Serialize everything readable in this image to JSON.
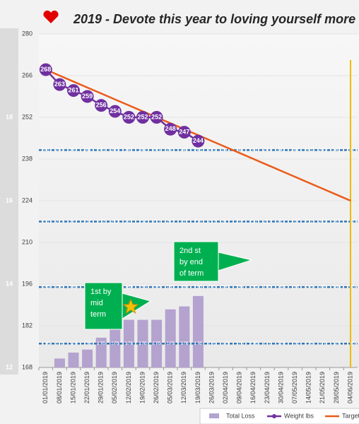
{
  "chart_data": {
    "type": "bar-line",
    "title": "2019 - Devote this year to loving yourself more",
    "categories": [
      "01/01/2019",
      "08/01/2019",
      "15/01/2019",
      "22/01/2019",
      "29/01/2019",
      "05/02/2019",
      "12/02/2019",
      "19/02/2019",
      "26/02/2019",
      "05/03/2019",
      "12/03/2019",
      "19/03/2019",
      "26/03/2019",
      "02/04/2019",
      "09/04/2019",
      "16/04/2019",
      "23/04/2019",
      "30/04/2019",
      "07/05/2019",
      "14/05/2019",
      "21/05/2019",
      "28/05/2019",
      "04/06/2019"
    ],
    "series": [
      {
        "name": "Total Loss",
        "kind": "bar",
        "color": "#b4a2cf",
        "values": [
          168,
          171,
          173,
          174,
          178,
          181,
          184,
          184,
          184,
          187.5,
          188.5,
          192,
          null,
          null,
          null,
          null,
          null,
          null,
          null,
          null,
          null,
          null,
          null
        ]
      },
      {
        "name": "Weight lbs",
        "kind": "line",
        "color": "#7030a0",
        "values": [
          268,
          263,
          261,
          259,
          256,
          254,
          252,
          252,
          252,
          248,
          247,
          244,
          null,
          null,
          null,
          null,
          null,
          null,
          null,
          null,
          null,
          null,
          null
        ]
      },
      {
        "name": "Target",
        "kind": "line",
        "color": "#ea5b1a",
        "values": [
          268,
          266,
          264,
          262,
          260,
          258,
          256,
          254,
          252,
          250,
          248,
          246,
          244,
          242,
          240,
          238,
          236,
          234,
          232,
          230,
          228,
          226,
          224
        ]
      }
    ],
    "ref_lines": [
      {
        "value": 241,
        "color": "#2e75b6"
      },
      {
        "value": 217,
        "color": "#2e75b6"
      },
      {
        "value": 195,
        "color": "#2e75b6"
      },
      {
        "value": 176,
        "color": "#2e75b6"
      }
    ],
    "vline_at": 22,
    "vline_color": "#f2b800",
    "ylim": [
      168,
      280
    ],
    "yticks": [
      168,
      182,
      196,
      210,
      224,
      238,
      252,
      266,
      280
    ],
    "y2lim": [
      12,
      20
    ],
    "y2ticks": [
      12,
      14,
      16,
      18
    ],
    "annotations": [
      {
        "lines": [
          "1st by",
          "mid",
          "term"
        ],
        "at": 6
      },
      {
        "lines": [
          "2nd st",
          "by end",
          "of term"
        ],
        "at": 12
      }
    ]
  }
}
